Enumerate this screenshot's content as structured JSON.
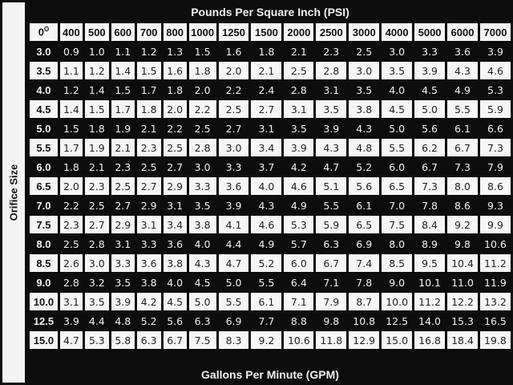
{
  "title": "Pounds Per Square Inch (PSI)",
  "side_label": "Orifice Size",
  "footer": "Gallons Per Minute (GPM)",
  "corner": "0",
  "corner_sup": "O",
  "columns": [
    "400",
    "500",
    "600",
    "700",
    "800",
    "1000",
    "1250",
    "1500",
    "2000",
    "2500",
    "3000",
    "4000",
    "5000",
    "6000",
    "7000"
  ],
  "rows": [
    {
      "size": "3.0",
      "values": [
        "0.9",
        "1.0",
        "1.1",
        "1.2",
        "1.3",
        "1.5",
        "1.6",
        "1.8",
        "2.1",
        "2.3",
        "2.5",
        "3.0",
        "3.3",
        "3.6",
        "3.9"
      ]
    },
    {
      "size": "3.5",
      "values": [
        "1.1",
        "1.2",
        "1.4",
        "1.5",
        "1.6",
        "1.8",
        "2.0",
        "2.1",
        "2.5",
        "2.8",
        "3.0",
        "3.5",
        "3.9",
        "4.3",
        "4.6"
      ]
    },
    {
      "size": "4.0",
      "values": [
        "1.2",
        "1.4",
        "1.5",
        "1.7",
        "1.8",
        "2.0",
        "2.2",
        "2.4",
        "2.8",
        "3.1",
        "3.5",
        "4.0",
        "4.5",
        "4.9",
        "5.3"
      ]
    },
    {
      "size": "4.5",
      "values": [
        "1.4",
        "1.5",
        "1.7",
        "1.8",
        "2.0",
        "2.2",
        "2.5",
        "2.7",
        "3.1",
        "3.5",
        "3.8",
        "4.5",
        "5.0",
        "5.5",
        "5.9"
      ]
    },
    {
      "size": "5.0",
      "values": [
        "1.5",
        "1.8",
        "1.9",
        "2.1",
        "2.2",
        "2.5",
        "2.7",
        "3.1",
        "3.5",
        "3.9",
        "4.3",
        "5.0",
        "5.6",
        "6.1",
        "6.6"
      ]
    },
    {
      "size": "5.5",
      "values": [
        "1.7",
        "1.9",
        "2.1",
        "2.3",
        "2.5",
        "2.8",
        "3.0",
        "3.4",
        "3.9",
        "4.3",
        "4.8",
        "5.5",
        "6.2",
        "6.7",
        "7.3"
      ]
    },
    {
      "size": "6.0",
      "values": [
        "1.8",
        "2.1",
        "2.3",
        "2.5",
        "2.7",
        "3.0",
        "3.3",
        "3.7",
        "4.2",
        "4.7",
        "5.2",
        "6.0",
        "6.7",
        "7.3",
        "7.9"
      ]
    },
    {
      "size": "6.5",
      "values": [
        "2.0",
        "2.3",
        "2.5",
        "2.7",
        "2.9",
        "3.3",
        "3.6",
        "4.0",
        "4.6",
        "5.1",
        "5.6",
        "6.5",
        "7.3",
        "8.0",
        "8.6"
      ]
    },
    {
      "size": "7.0",
      "values": [
        "2.2",
        "2.5",
        "2.7",
        "2.9",
        "3.1",
        "3.5",
        "3.9",
        "4.3",
        "4.9",
        "5.5",
        "6.1",
        "7.0",
        "7.8",
        "8.6",
        "9.3"
      ]
    },
    {
      "size": "7.5",
      "values": [
        "2.3",
        "2.7",
        "2.9",
        "3.1",
        "3.4",
        "3.8",
        "4.1",
        "4.6",
        "5.3",
        "5.9",
        "6.5",
        "7.5",
        "8.4",
        "9.2",
        "9.9"
      ]
    },
    {
      "size": "8.0",
      "values": [
        "2.5",
        "2.8",
        "3.1",
        "3.3",
        "3.6",
        "4.0",
        "4.4",
        "4.9",
        "5.7",
        "6.3",
        "6.9",
        "8.0",
        "8.9",
        "9.8",
        "10.6"
      ]
    },
    {
      "size": "8.5",
      "values": [
        "2.6",
        "3.0",
        "3.3",
        "3.6",
        "3.8",
        "4.3",
        "4.7",
        "5.2",
        "6.0",
        "6.7",
        "7.4",
        "8.5",
        "9.5",
        "10.4",
        "11.2"
      ]
    },
    {
      "size": "9.0",
      "values": [
        "2.8",
        "3.2",
        "3.5",
        "3.8",
        "4.0",
        "4.5",
        "5.0",
        "5.5",
        "6.4",
        "7.1",
        "7.8",
        "9.0",
        "10.1",
        "11.0",
        "11.9"
      ]
    },
    {
      "size": "10.0",
      "values": [
        "3.1",
        "3.5",
        "3.9",
        "4.2",
        "4.5",
        "5.0",
        "5.5",
        "6.1",
        "7.1",
        "7.9",
        "8.7",
        "10.0",
        "11.2",
        "12.2",
        "13.2"
      ]
    },
    {
      "size": "12.5",
      "values": [
        "3.9",
        "4.4",
        "4.8",
        "5.2",
        "5.6",
        "6.3",
        "6.9",
        "7.7",
        "8.8",
        "9.8",
        "10.8",
        "12.5",
        "14.0",
        "15.3",
        "16.5"
      ]
    },
    {
      "size": "15.0",
      "values": [
        "4.7",
        "5.3",
        "5.8",
        "6.3",
        "6.7",
        "7.5",
        "8.3",
        "9.2",
        "10.6",
        "11.8",
        "12.9",
        "15.0",
        "16.8",
        "18.4",
        "19.8"
      ]
    }
  ]
}
